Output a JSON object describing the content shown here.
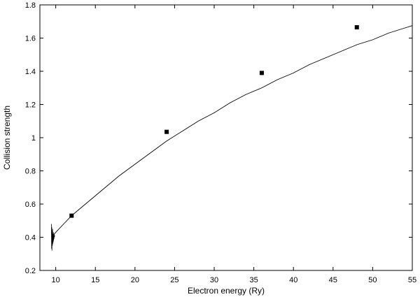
{
  "chart_data": {
    "type": "line",
    "title": "",
    "xlabel": "Electron energy (Ry)",
    "ylabel": "Collision strength",
    "xlim": [
      8,
      55
    ],
    "ylim": [
      0.2,
      1.8
    ],
    "x_ticks": [
      10,
      15,
      20,
      25,
      30,
      35,
      40,
      45,
      50,
      55
    ],
    "y_ticks": [
      0.2,
      0.4,
      0.6,
      0.8,
      1,
      1.2,
      1.4,
      1.6,
      1.8
    ],
    "x_tick_labels": [
      "10",
      "15",
      "20",
      "25",
      "30",
      "35",
      "40",
      "45",
      "50",
      "55"
    ],
    "y_tick_labels": [
      "0.2",
      "0.4",
      "0.6",
      "0.8",
      "1",
      "1.2",
      "1.4",
      "1.6",
      "1.8"
    ],
    "grid": false,
    "legend": "none",
    "series": [
      {
        "style": "line",
        "color": "#000000",
        "x": [
          9.5,
          10.0,
          11.0,
          12.0,
          14.0,
          16.0,
          18.0,
          20.0,
          22.0,
          24.0,
          26.0,
          28.0,
          30.0,
          32.0,
          34.0,
          36.0,
          38.0,
          40.0,
          42.0,
          44.0,
          46.0,
          48.0,
          50.0,
          52.0,
          54.0,
          55.0
        ],
        "y": [
          0.4,
          0.43,
          0.48,
          0.53,
          0.61,
          0.69,
          0.77,
          0.84,
          0.91,
          0.98,
          1.04,
          1.1,
          1.15,
          1.21,
          1.26,
          1.3,
          1.35,
          1.39,
          1.44,
          1.48,
          1.52,
          1.56,
          1.59,
          1.63,
          1.66,
          1.675
        ]
      },
      {
        "style": "resonances",
        "color": "#000000",
        "x": [
          9.45,
          9.48,
          9.5,
          9.52,
          9.55,
          9.58,
          9.6,
          9.62,
          9.65,
          9.68,
          9.7,
          9.72,
          9.75,
          9.78,
          9.8,
          9.83,
          9.86,
          9.9
        ],
        "y": [
          0.48,
          0.33,
          0.46,
          0.32,
          0.44,
          0.35,
          0.45,
          0.36,
          0.42,
          0.37,
          0.43,
          0.38,
          0.41,
          0.39,
          0.42,
          0.4,
          0.41,
          0.41
        ]
      },
      {
        "style": "markers",
        "color": "#000000",
        "x": [
          12,
          24,
          36,
          48
        ],
        "y": [
          0.53,
          1.035,
          1.39,
          1.665
        ]
      }
    ]
  }
}
